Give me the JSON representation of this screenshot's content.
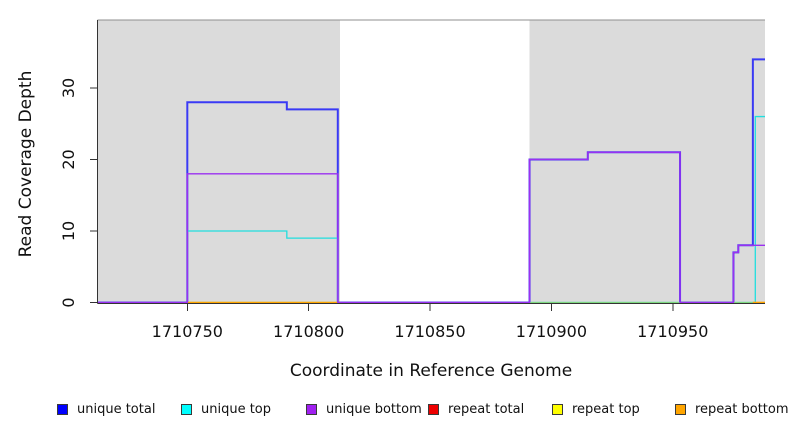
{
  "chart_data": {
    "type": "step-line",
    "title": "",
    "xlabel": "Coordinate in Reference Genome",
    "ylabel": "Read Coverage Depth",
    "axes": {
      "x_domain": [
        1710713,
        1710988
      ],
      "y_domain": [
        0,
        39.5
      ],
      "x_ticks": [
        1710750,
        1710800,
        1710850,
        1710900,
        1710950
      ],
      "y_ticks": [
        0,
        10,
        20,
        30
      ],
      "grid": "off",
      "axis_color": "#333333",
      "text_color": "#111111"
    },
    "background": {
      "plot_bg": "#FFFFFF",
      "shaded_color": "#DBDBDB",
      "shaded_regions": [
        [
          1710713,
          1710813
        ],
        [
          1710891,
          1710988
        ]
      ],
      "unshaded_gap": [
        1710813,
        1710891
      ],
      "box_top_color": "#8F8F8F"
    },
    "legend_position": "bottom",
    "series": [
      {
        "name": "unique_total",
        "label": "unique total",
        "legend_color": "#0000FF",
        "line_color": "#3A3AF5",
        "width": 2,
        "segments": [
          {
            "steps": [
              [
                1710713,
                0
              ],
              [
                1710750,
                28
              ],
              [
                1710791,
                27
              ],
              [
                1710812,
                0
              ],
              [
                1710891,
                20
              ],
              [
                1710915,
                21
              ],
              [
                1710953,
                0
              ],
              [
                1710975,
                7
              ],
              [
                1710977,
                8
              ],
              [
                1710983,
                34
              ]
            ],
            "end": 1710988
          }
        ]
      },
      {
        "name": "unique_top",
        "label": "unique top",
        "legend_color": "#00FFFF",
        "line_color": "#21DEDE",
        "width": 1.3,
        "segments": [
          {
            "steps": [
              [
                1710713,
                0
              ],
              [
                1710750,
                10
              ],
              [
                1710791,
                9
              ],
              [
                1710812,
                0
              ],
              [
                1710984,
                26
              ]
            ],
            "end": 1710988
          }
        ]
      },
      {
        "name": "unique_bottom",
        "label": "unique bottom",
        "legend_color": "#A020F0",
        "line_color": "#9B30F0",
        "width": 1.4,
        "segments": [
          {
            "steps": [
              [
                1710713,
                0
              ],
              [
                1710750,
                18
              ],
              [
                1710812,
                0
              ],
              [
                1710891,
                20
              ],
              [
                1710915,
                21
              ],
              [
                1710953,
                0
              ],
              [
                1710975,
                7
              ],
              [
                1710977,
                8
              ]
            ],
            "end": 1710988
          }
        ]
      },
      {
        "name": "repeat_total",
        "label": "repeat total",
        "legend_color": "#EE0000",
        "line_color": "#EE0000",
        "width": 1,
        "segments": [
          {
            "steps": [
              [
                1710750,
                0
              ]
            ],
            "end": 1710813
          },
          {
            "steps": [
              [
                1710983,
                0
              ]
            ],
            "end": 1710988
          }
        ]
      },
      {
        "name": "repeat_top",
        "label": "repeat top",
        "legend_color": "#FFFF00",
        "line_color": "#7FD87F",
        "note": "renders pale green where it overlies unique top at depth 0",
        "width": 1.3,
        "segments": [
          {
            "steps": [
              [
                1710750,
                0
              ]
            ],
            "end": 1710812
          },
          {
            "steps": [
              [
                1710891,
                0
              ]
            ],
            "end": 1710983
          }
        ]
      },
      {
        "name": "repeat_bottom",
        "label": "repeat bottom",
        "legend_color": "#FFA500",
        "line_color": "#FFA500",
        "width": 1.6,
        "segments": [
          {
            "steps": [
              [
                1710750,
                0
              ]
            ],
            "end": 1710813
          },
          {
            "steps": [
              [
                1710983,
                0
              ]
            ],
            "end": 1710988
          }
        ]
      }
    ],
    "draw_order": [
      0,
      1,
      3,
      4,
      5,
      2
    ]
  }
}
